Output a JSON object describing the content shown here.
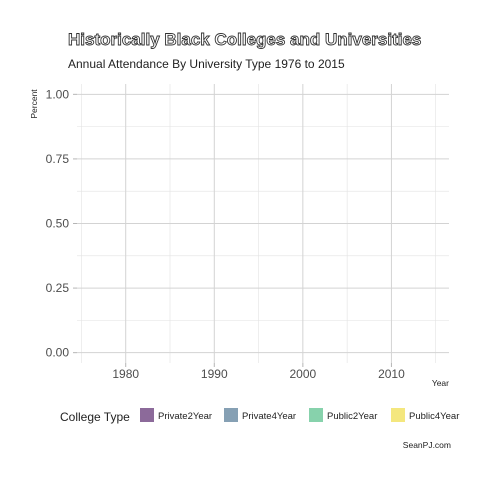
{
  "chart_data": {
    "type": "area",
    "title": "Historically Black Colleges and Universities",
    "subtitle": "Annual Attendance By University Type 1976 to 2015",
    "xlabel": "Year",
    "ylabel": "Percent",
    "xlim": [
      1974.5,
      2016.5
    ],
    "ylim": [
      -0.04,
      1.04
    ],
    "x_ticks": [
      1980,
      1990,
      2000,
      2010
    ],
    "x_tick_labels": [
      "1980",
      "1990",
      "2000",
      "2010"
    ],
    "y_ticks": [
      0,
      0.25,
      0.5,
      0.75,
      1
    ],
    "y_tick_labels": [
      "0.00",
      "0.25",
      "0.50",
      "0.75",
      "1.00"
    ],
    "grid": true,
    "legend_title": "College Type",
    "legend_position": "bottom",
    "series": [
      {
        "name": "Private2Year",
        "color": "#8c6a9a",
        "values": []
      },
      {
        "name": "Private4Year",
        "color": "#86a0b4",
        "values": []
      },
      {
        "name": "Public2Year",
        "color": "#87d2ac",
        "values": []
      },
      {
        "name": "Public4Year",
        "color": "#f4e77e",
        "values": []
      }
    ],
    "caption": "SeanPJ.com"
  }
}
